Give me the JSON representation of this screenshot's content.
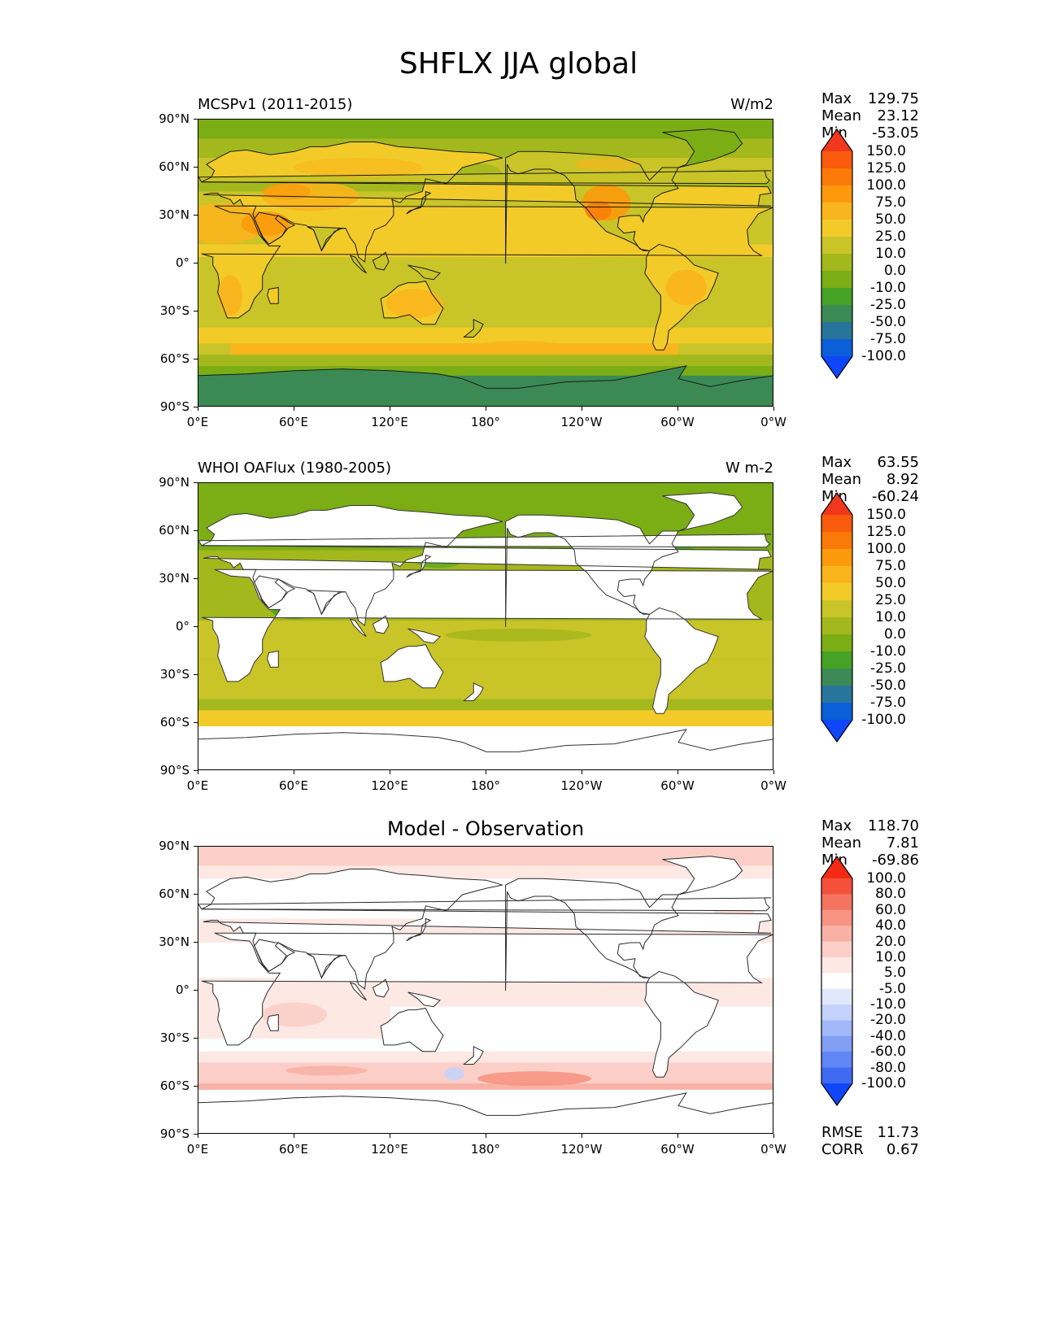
{
  "figure": {
    "title": "SHFLX JJA global"
  },
  "axes": {
    "lat_ticks": [
      "90°N",
      "60°N",
      "30°N",
      "0°",
      "30°S",
      "60°S",
      "90°S"
    ],
    "lon_ticks": [
      "0°E",
      "60°E",
      "120°E",
      "180°",
      "120°W",
      "60°W",
      "0°W"
    ]
  },
  "panels": [
    {
      "id": "model",
      "title": "MCSPv1 (2011-2015)",
      "units": "W/m2",
      "stats": [
        {
          "label": "Max",
          "value": "129.75"
        },
        {
          "label": "Mean",
          "value": "23.12"
        },
        {
          "label": "Min",
          "value": "-53.05"
        }
      ],
      "colorbar": {
        "labels": [
          "150.0",
          "125.0",
          "100.0",
          "75.0",
          "50.0",
          "25.0",
          "10.0",
          "0.0",
          "-10.0",
          "-25.0",
          "-50.0",
          "-75.0",
          "-100.0"
        ],
        "colors": [
          "#f1381c",
          "#f95a0c",
          "#fb7a07",
          "#fc9a0c",
          "#f9b51c",
          "#f2cb29",
          "#c9c428",
          "#a3b81c",
          "#7bad15",
          "#45a224",
          "#3b8a55",
          "#27759a",
          "#0b5fd8",
          "#0f46fa"
        ]
      }
    },
    {
      "id": "obs",
      "title": "WHOI OAFlux (1980-2005)",
      "units": "W m-2",
      "stats": [
        {
          "label": "Max",
          "value": "63.55"
        },
        {
          "label": "Mean",
          "value": "8.92"
        },
        {
          "label": "Min",
          "value": "-60.24"
        }
      ],
      "colorbar": {
        "labels": [
          "150.0",
          "125.0",
          "100.0",
          "75.0",
          "50.0",
          "25.0",
          "10.0",
          "0.0",
          "-10.0",
          "-25.0",
          "-50.0",
          "-75.0",
          "-100.0"
        ],
        "colors": [
          "#f1381c",
          "#f95a0c",
          "#fb7a07",
          "#fc9a0c",
          "#f9b51c",
          "#f2cb29",
          "#c9c428",
          "#a3b81c",
          "#7bad15",
          "#45a224",
          "#3b8a55",
          "#27759a",
          "#0b5fd8",
          "#0f46fa"
        ]
      }
    },
    {
      "id": "diff",
      "title": "Model - Observation",
      "units": "",
      "stats": [
        {
          "label": "Max",
          "value": "118.70"
        },
        {
          "label": "Mean",
          "value": "7.81"
        },
        {
          "label": "Min",
          "value": "-69.86"
        }
      ],
      "metrics": [
        {
          "label": "RMSE",
          "value": "11.73"
        },
        {
          "label": "CORR",
          "value": "0.67"
        }
      ],
      "colorbar": {
        "labels": [
          "100.0",
          "80.0",
          "60.0",
          "40.0",
          "20.0",
          "10.0",
          "5.0",
          "-5.0",
          "-10.0",
          "-20.0",
          "-40.0",
          "-60.0",
          "-80.0",
          "-100.0"
        ],
        "colors": [
          "#f42b12",
          "#f4513c",
          "#f57460",
          "#f79483",
          "#f8b1a5",
          "#fbcfc7",
          "#fde8e4",
          "#ffffff",
          "#e1e8fc",
          "#c4d2fb",
          "#a3b8f8",
          "#829ff6",
          "#6185f4",
          "#3f6bf2",
          "#0f46fa"
        ]
      }
    }
  ]
}
